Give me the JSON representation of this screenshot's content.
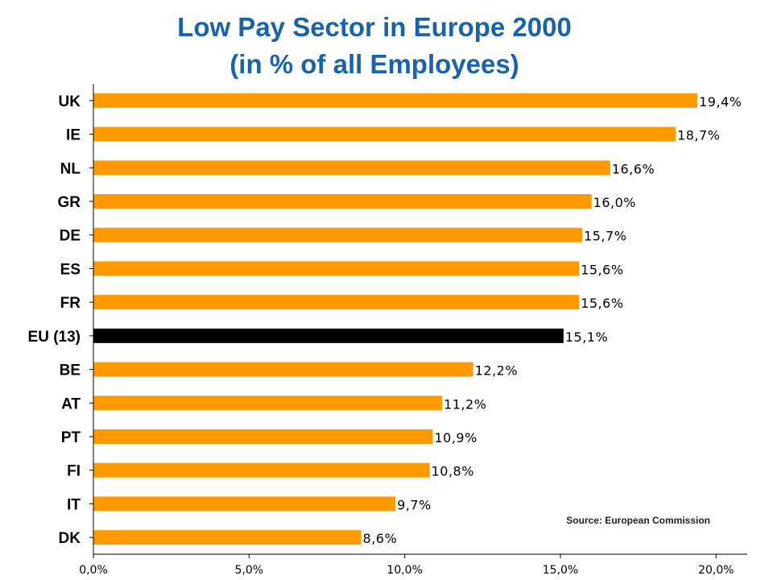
{
  "chart_data": {
    "type": "bar",
    "orientation": "horizontal",
    "title": "Low Pay Sector in Europe 2000",
    "subtitle": "(in % of all Employees)",
    "categories": [
      "UK",
      "IE",
      "NL",
      "GR",
      "DE",
      "ES",
      "FR",
      "EU (13)",
      "BE",
      "AT",
      "PT",
      "FI",
      "IT",
      "DK"
    ],
    "values": [
      19.4,
      18.7,
      16.6,
      16.0,
      15.7,
      15.6,
      15.6,
      15.1,
      12.2,
      11.2,
      10.9,
      10.8,
      9.7,
      8.6
    ],
    "value_labels": [
      "19,4%",
      "18,7%",
      "16,6%",
      "16,0%",
      "15,7%",
      "15,6%",
      "15,6%",
      "15,1%",
      "12,2%",
      "11,2%",
      "10,9%",
      "10,8%",
      "9,7%",
      "8,6%"
    ],
    "xlim": [
      0,
      21
    ],
    "xticks": [
      0,
      5,
      10,
      15,
      20
    ],
    "xtick_labels": [
      "0,0%",
      "5,0%",
      "10,0%",
      "15,0%",
      "20,0%"
    ],
    "grid": false,
    "legend": "none",
    "annotation": "Source: European Commission",
    "colors": {
      "bar": "#ff9900",
      "highlight": "#000000",
      "title": "#1a63a8"
    },
    "highlight_category": "EU (13)"
  }
}
